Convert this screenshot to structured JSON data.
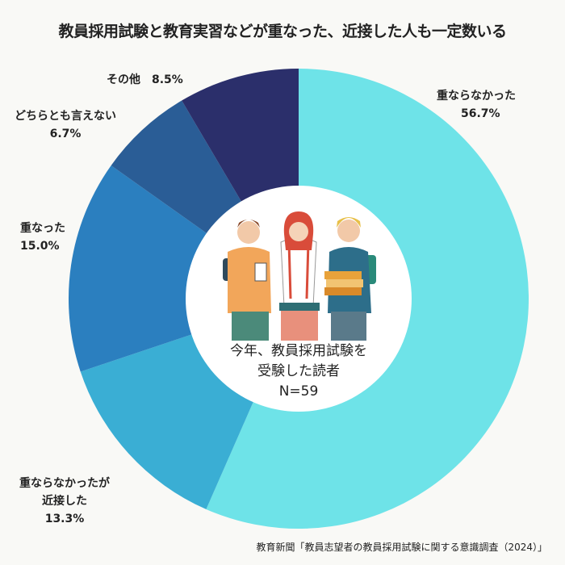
{
  "title": "教員採用試験と教育実習などが重なった、近接した人も一定数いる",
  "chart_data": {
    "type": "pie",
    "categories": [
      "重ならなかった",
      "重ならなかったが近接した",
      "重なった",
      "どちらとも言えない",
      "その他"
    ],
    "values": [
      56.7,
      13.3,
      15.0,
      6.7,
      8.5
    ],
    "colors": [
      "#6ee3e8",
      "#3aaed4",
      "#2b7fbf",
      "#2a5d96",
      "#2b2f6b"
    ],
    "labels": [
      {
        "line1": "重ならなかった",
        "line2": "56.7%"
      },
      {
        "line1": "重ならなかったが",
        "line2": "近接した",
        "line3": "13.3%"
      },
      {
        "line1": "重なった",
        "line2": "15.0%"
      },
      {
        "line1": "どちらとも言えない",
        "line2": "6.7%"
      },
      {
        "line1": "その他　8.5%"
      }
    ]
  },
  "center": {
    "line1": "今年、教員採用試験を",
    "line2": "受験した読者",
    "line3": "N=59"
  },
  "source": "教育新聞「教員志望者の教員採用試験に関する意識調査（2024）」"
}
